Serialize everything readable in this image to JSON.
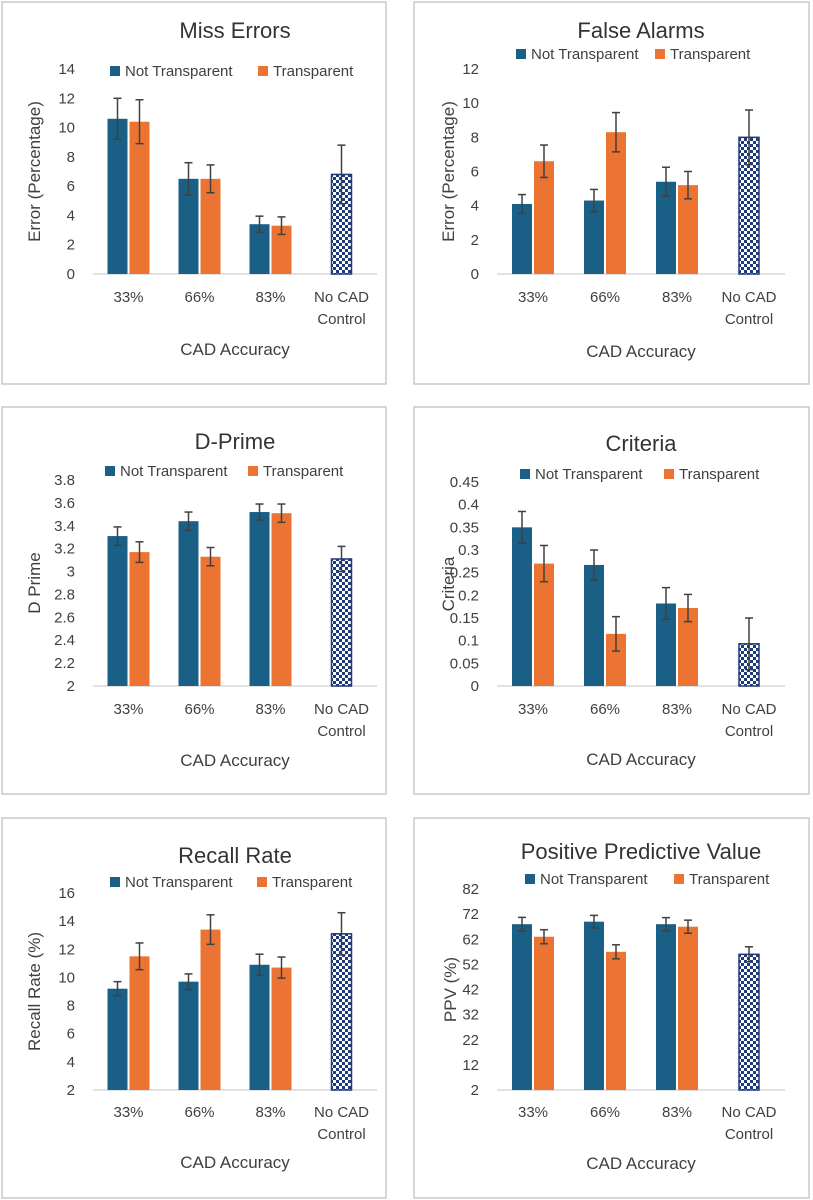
{
  "colors": {
    "not_transparent": "#1a5f85",
    "transparent": "#ec7433",
    "control": "#1e3a78"
  },
  "chart_data": [
    {
      "type": "bar",
      "title": "Miss Errors",
      "ylabel": "Error (Percentage)",
      "xlabel": "CAD Accuracy",
      "ylim": [
        0,
        14
      ],
      "yticks": [
        "0",
        "2",
        "4",
        "6",
        "8",
        "10",
        "12",
        "14"
      ],
      "categories": [
        "33%",
        "66%",
        "83%",
        "No CAD Control"
      ],
      "legend": [
        "Not Transparent",
        "Transparent"
      ],
      "series": [
        {
          "name": "Not Transparent",
          "values": [
            10.6,
            6.5,
            3.4,
            null
          ],
          "errors": [
            1.4,
            1.1,
            0.55,
            null
          ]
        },
        {
          "name": "Transparent",
          "values": [
            10.4,
            6.5,
            3.3,
            null
          ],
          "errors": [
            1.5,
            0.95,
            0.6,
            null
          ]
        }
      ],
      "control": {
        "value": 6.8,
        "error": 2.0
      }
    },
    {
      "type": "bar",
      "title": "False Alarms",
      "ylabel": "Error (Percentage)",
      "xlabel": "CAD Accuracy",
      "ylim": [
        0,
        12
      ],
      "yticks": [
        "0",
        "2",
        "4",
        "6",
        "8",
        "10",
        "12"
      ],
      "categories": [
        "33%",
        "66%",
        "83%",
        "No CAD Control"
      ],
      "legend": [
        "Not Transparent",
        "Transparent"
      ],
      "series": [
        {
          "name": "Not Transparent",
          "values": [
            4.1,
            4.3,
            5.4,
            null
          ],
          "errors": [
            0.55,
            0.65,
            0.85,
            null
          ]
        },
        {
          "name": "Transparent",
          "values": [
            6.6,
            8.3,
            5.2,
            null
          ],
          "errors": [
            0.95,
            1.15,
            0.8,
            null
          ]
        }
      ],
      "control": {
        "value": 8.0,
        "error": 1.6
      }
    },
    {
      "type": "bar",
      "title": "D-Prime",
      "ylabel": "D Prime",
      "xlabel": "CAD Accuracy",
      "ylim": [
        2,
        3.8
      ],
      "yticks": [
        "2",
        "2.2",
        "2.4",
        "2.6",
        "2.8",
        "3",
        "3.2",
        "3.4",
        "3.6",
        "3.8"
      ],
      "categories": [
        "33%",
        "66%",
        "83%",
        "No CAD Control"
      ],
      "legend": [
        "Not Transparent",
        "Transparent"
      ],
      "series": [
        {
          "name": "Not Transparent",
          "values": [
            3.31,
            3.44,
            3.52,
            null
          ],
          "errors": [
            0.08,
            0.08,
            0.07,
            null
          ]
        },
        {
          "name": "Transparent",
          "values": [
            3.17,
            3.13,
            3.51,
            null
          ],
          "errors": [
            0.09,
            0.08,
            0.08,
            null
          ]
        }
      ],
      "control": {
        "value": 3.11,
        "error": 0.11
      }
    },
    {
      "type": "bar",
      "title": "Criteria",
      "ylabel": "Criteria",
      "xlabel": "CAD Accuracy",
      "ylim": [
        0,
        0.45
      ],
      "yticks": [
        "0",
        "0.05",
        "0.1",
        "0.15",
        "0.2",
        "0.25",
        "0.3",
        "0.35",
        "0.4",
        "0.45"
      ],
      "categories": [
        "33%",
        "66%",
        "83%",
        "No CAD Control"
      ],
      "legend": [
        "Not Transparent",
        "Transparent"
      ],
      "series": [
        {
          "name": "Not Transparent",
          "values": [
            0.35,
            0.267,
            0.182,
            null
          ],
          "errors": [
            0.035,
            0.033,
            0.035,
            null
          ]
        },
        {
          "name": "Transparent",
          "values": [
            0.27,
            0.115,
            0.172,
            null
          ],
          "errors": [
            0.04,
            0.038,
            0.03,
            null
          ]
        }
      ],
      "control": {
        "value": 0.093,
        "error": 0.057
      }
    },
    {
      "type": "bar",
      "title": "Recall Rate",
      "ylabel": "Recall Rate (%)",
      "xlabel": "CAD Accuracy",
      "ylim": [
        2,
        16
      ],
      "yticks": [
        "2",
        "4",
        "6",
        "8",
        "10",
        "12",
        "14",
        "16"
      ],
      "categories": [
        "33%",
        "66%",
        "83%",
        "No CAD Control"
      ],
      "legend": [
        "Not Transparent",
        "Transparent"
      ],
      "series": [
        {
          "name": "Not Transparent",
          "values": [
            9.2,
            9.7,
            10.9,
            null
          ],
          "errors": [
            0.5,
            0.55,
            0.75,
            null
          ]
        },
        {
          "name": "Transparent",
          "values": [
            11.5,
            13.4,
            10.7,
            null
          ],
          "errors": [
            0.95,
            1.05,
            0.75,
            null
          ]
        }
      ],
      "control": {
        "value": 13.1,
        "error": 1.5
      }
    },
    {
      "type": "bar",
      "title": "Positive Predictive Value",
      "ylabel": "PPV (%)",
      "xlabel": "CAD Accuracy",
      "ylim": [
        2,
        82
      ],
      "yticks": [
        "2",
        "12",
        "22",
        "32",
        "42",
        "52",
        "62",
        "72",
        "82"
      ],
      "categories": [
        "33%",
        "66%",
        "83%",
        "No CAD Control"
      ],
      "legend": [
        "Not Transparent",
        "Transparent"
      ],
      "series": [
        {
          "name": "Not Transparent",
          "values": [
            68,
            69,
            68,
            null
          ],
          "errors": [
            2.7,
            2.5,
            2.6,
            null
          ]
        },
        {
          "name": "Transparent",
          "values": [
            63,
            57,
            67,
            null
          ],
          "errors": [
            2.8,
            2.8,
            2.6,
            null
          ]
        }
      ],
      "control": {
        "value": 56,
        "error": 3.0
      }
    }
  ]
}
